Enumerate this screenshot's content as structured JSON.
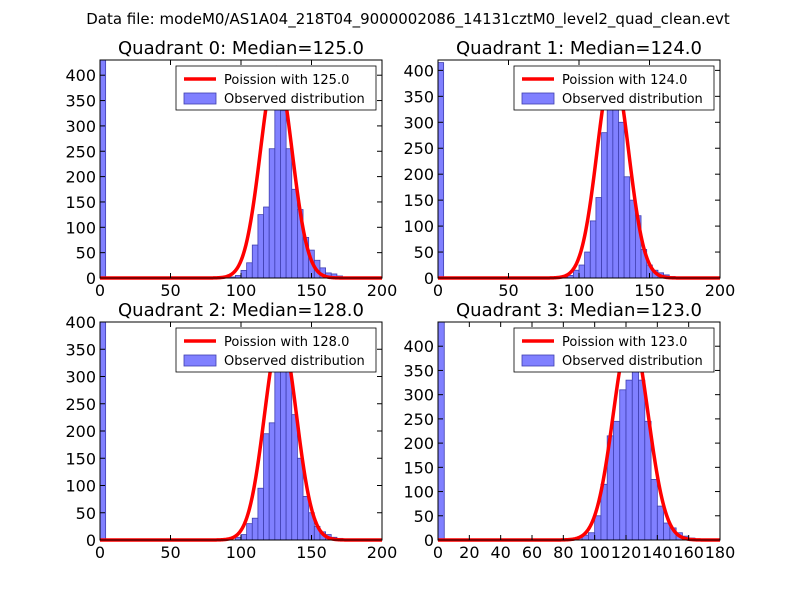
{
  "figure_title": "Data file: modeM0/AS1A04_218T04_9000002086_14131cztM0_level2_quad_clean.evt",
  "colors": {
    "bar_fill": "#8080ff",
    "bar_edge": "#3f3fb0",
    "curve": "#ff0000",
    "axes": "#000000"
  },
  "chart_data": [
    {
      "type": "bar",
      "title": "Quadrant 0: Median=125.0",
      "legend": {
        "curve_label": "Poission with 125.0",
        "bar_label": "Observed distribution",
        "placement": "top-right"
      },
      "xlim": [
        0,
        200
      ],
      "ylim": [
        0,
        430
      ],
      "xticks": [
        0,
        50,
        100,
        150,
        200
      ],
      "yticks": [
        0,
        50,
        100,
        150,
        200,
        250,
        300,
        350,
        400
      ],
      "bin_width": 4,
      "bins": [
        {
          "x": 0,
          "y": 430
        },
        {
          "x": 92,
          "y": 2
        },
        {
          "x": 96,
          "y": 5
        },
        {
          "x": 100,
          "y": 15
        },
        {
          "x": 104,
          "y": 30
        },
        {
          "x": 108,
          "y": 65
        },
        {
          "x": 112,
          "y": 125
        },
        {
          "x": 116,
          "y": 140
        },
        {
          "x": 120,
          "y": 255
        },
        {
          "x": 124,
          "y": 365
        },
        {
          "x": 128,
          "y": 330
        },
        {
          "x": 132,
          "y": 255
        },
        {
          "x": 136,
          "y": 175
        },
        {
          "x": 140,
          "y": 135
        },
        {
          "x": 144,
          "y": 80
        },
        {
          "x": 148,
          "y": 55
        },
        {
          "x": 152,
          "y": 35
        },
        {
          "x": 156,
          "y": 20
        },
        {
          "x": 160,
          "y": 10
        },
        {
          "x": 164,
          "y": 8
        },
        {
          "x": 168,
          "y": 4
        },
        {
          "x": 172,
          "y": 2
        },
        {
          "x": 176,
          "y": 1
        }
      ],
      "curve": {
        "mu": 125.0,
        "peak": 415,
        "xmin": 0,
        "xmax": 200
      }
    },
    {
      "type": "bar",
      "title": "Quadrant 1: Median=124.0",
      "legend": {
        "curve_label": "Poission with 124.0",
        "bar_label": "Observed distribution",
        "placement": "top-right"
      },
      "xlim": [
        0,
        200
      ],
      "ylim": [
        0,
        420
      ],
      "xticks": [
        0,
        50,
        100,
        150,
        200
      ],
      "yticks": [
        0,
        50,
        100,
        150,
        200,
        250,
        300,
        350,
        400
      ],
      "bin_width": 4,
      "bins": [
        {
          "x": 0,
          "y": 415
        },
        {
          "x": 88,
          "y": 2
        },
        {
          "x": 92,
          "y": 5
        },
        {
          "x": 96,
          "y": 15
        },
        {
          "x": 100,
          "y": 25
        },
        {
          "x": 104,
          "y": 50
        },
        {
          "x": 108,
          "y": 110
        },
        {
          "x": 112,
          "y": 155
        },
        {
          "x": 116,
          "y": 280
        },
        {
          "x": 120,
          "y": 345
        },
        {
          "x": 124,
          "y": 330
        },
        {
          "x": 128,
          "y": 300
        },
        {
          "x": 132,
          "y": 195
        },
        {
          "x": 136,
          "y": 150
        },
        {
          "x": 140,
          "y": 120
        },
        {
          "x": 144,
          "y": 55
        },
        {
          "x": 148,
          "y": 25
        },
        {
          "x": 152,
          "y": 15
        },
        {
          "x": 156,
          "y": 10
        },
        {
          "x": 160,
          "y": 6
        },
        {
          "x": 164,
          "y": 3
        },
        {
          "x": 168,
          "y": 2
        }
      ],
      "curve": {
        "mu": 124.0,
        "peak": 405,
        "xmin": 0,
        "xmax": 200
      }
    },
    {
      "type": "bar",
      "title": "Quadrant 2: Median=128.0",
      "legend": {
        "curve_label": "Poission with 128.0",
        "bar_label": "Observed distribution",
        "placement": "top-right"
      },
      "xlim": [
        0,
        200
      ],
      "ylim": [
        0,
        400
      ],
      "xticks": [
        0,
        50,
        100,
        150,
        200
      ],
      "yticks": [
        0,
        50,
        100,
        150,
        200,
        250,
        300,
        350,
        400
      ],
      "bin_width": 4,
      "bins": [
        {
          "x": 0,
          "y": 400
        },
        {
          "x": 96,
          "y": 5
        },
        {
          "x": 100,
          "y": 10
        },
        {
          "x": 104,
          "y": 30
        },
        {
          "x": 108,
          "y": 40
        },
        {
          "x": 112,
          "y": 95
        },
        {
          "x": 116,
          "y": 195
        },
        {
          "x": 120,
          "y": 215
        },
        {
          "x": 124,
          "y": 350
        },
        {
          "x": 128,
          "y": 345
        },
        {
          "x": 132,
          "y": 320
        },
        {
          "x": 136,
          "y": 230
        },
        {
          "x": 140,
          "y": 150
        },
        {
          "x": 144,
          "y": 80
        },
        {
          "x": 148,
          "y": 50
        },
        {
          "x": 152,
          "y": 25
        },
        {
          "x": 156,
          "y": 15
        },
        {
          "x": 160,
          "y": 10
        },
        {
          "x": 164,
          "y": 5
        },
        {
          "x": 168,
          "y": 3
        },
        {
          "x": 172,
          "y": 2
        }
      ],
      "curve": {
        "mu": 128.0,
        "peak": 380,
        "xmin": 0,
        "xmax": 200
      }
    },
    {
      "type": "bar",
      "title": "Quadrant 3: Median=123.0",
      "legend": {
        "curve_label": "Poission with 123.0",
        "bar_label": "Observed distribution",
        "placement": "top-right"
      },
      "xlim": [
        0,
        180
      ],
      "ylim": [
        0,
        450
      ],
      "xticks": [
        0,
        20,
        40,
        60,
        80,
        100,
        120,
        140,
        160,
        180
      ],
      "yticks": [
        0,
        50,
        100,
        150,
        200,
        250,
        300,
        350,
        400
      ],
      "bin_width": 4,
      "bins": [
        {
          "x": 0,
          "y": 450
        },
        {
          "x": 84,
          "y": 2
        },
        {
          "x": 88,
          "y": 5
        },
        {
          "x": 92,
          "y": 10
        },
        {
          "x": 96,
          "y": 15
        },
        {
          "x": 100,
          "y": 50
        },
        {
          "x": 104,
          "y": 115
        },
        {
          "x": 108,
          "y": 215
        },
        {
          "x": 112,
          "y": 245
        },
        {
          "x": 116,
          "y": 310
        },
        {
          "x": 120,
          "y": 330
        },
        {
          "x": 124,
          "y": 365
        },
        {
          "x": 128,
          "y": 330
        },
        {
          "x": 132,
          "y": 245
        },
        {
          "x": 136,
          "y": 125
        },
        {
          "x": 140,
          "y": 70
        },
        {
          "x": 144,
          "y": 35
        },
        {
          "x": 148,
          "y": 25
        },
        {
          "x": 152,
          "y": 15
        },
        {
          "x": 156,
          "y": 8
        },
        {
          "x": 160,
          "y": 4
        },
        {
          "x": 164,
          "y": 2
        }
      ],
      "curve": {
        "mu": 123.0,
        "peak": 430,
        "xmin": 0,
        "xmax": 180
      }
    }
  ]
}
